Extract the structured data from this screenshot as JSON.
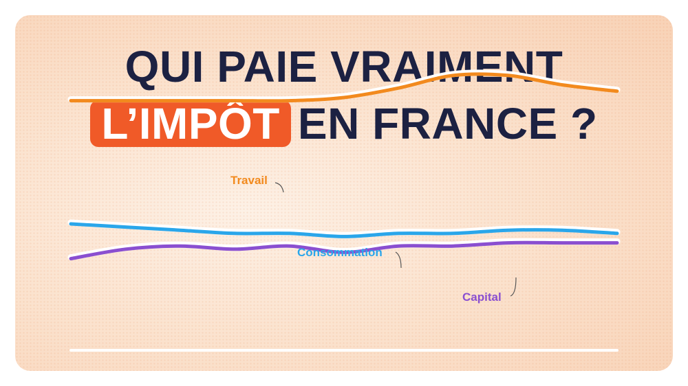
{
  "title": {
    "line1": "QUI PAIE VRAIMENT",
    "highlight": "L’IMPÔT",
    "line2_rest": "EN FRANCE ?"
  },
  "colors": {
    "title": "#1c2142",
    "highlight_bg": "#f05a28",
    "travail": "#f28a1e",
    "consommation": "#2aa6ea",
    "capital": "#8a4fd0"
  },
  "chart_data": {
    "type": "line",
    "x": [
      0,
      1,
      2,
      3,
      4,
      5,
      6,
      7,
      8,
      9,
      10
    ],
    "ylim": [
      0,
      100
    ],
    "grid": false,
    "xlabel": "",
    "ylabel": "",
    "series": [
      {
        "name": "Travail",
        "color": "#f28a1e",
        "values": [
          79,
          79,
          79,
          79,
          79,
          80,
          83,
          87,
          87,
          84,
          82
        ]
      },
      {
        "name": "Consommation",
        "color": "#2aa6ea",
        "values": [
          40,
          39,
          38,
          37,
          37,
          36,
          37,
          37,
          38,
          38,
          37
        ]
      },
      {
        "name": "Capital",
        "color": "#8a4fd0",
        "values": [
          29,
          32,
          33,
          32,
          33,
          31,
          33,
          33,
          34,
          34,
          34
        ]
      }
    ]
  }
}
